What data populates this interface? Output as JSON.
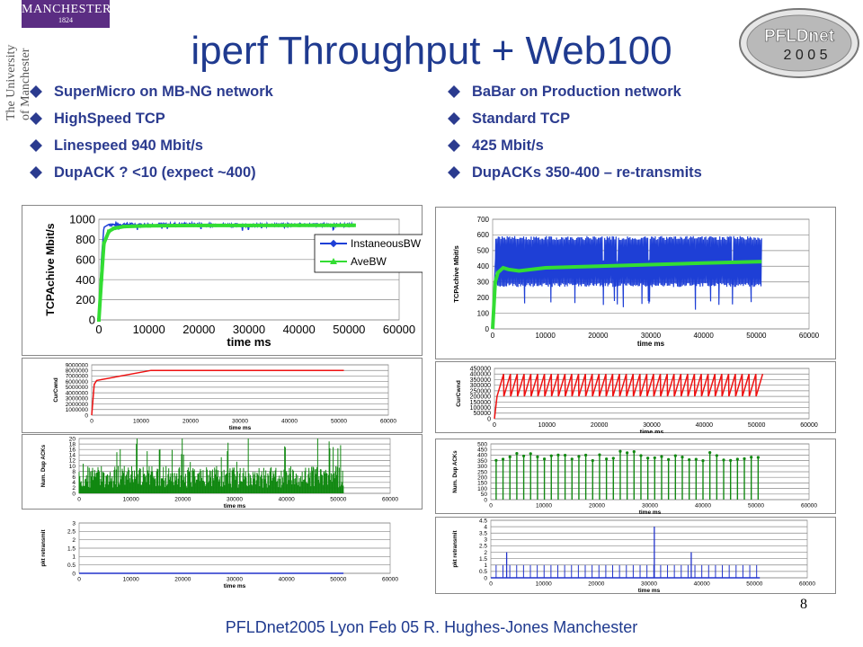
{
  "slide": {
    "title": "iperf Throughput + Web100",
    "page_number": "8",
    "footer": "PFLDnet2005 Lyon Feb 05 R. Hughes-Jones  Manchester"
  },
  "logos": {
    "manchester_word": "MANCHESTER",
    "manchester_year": "1824",
    "university_line1": "The University",
    "university_line2": "of Manchester",
    "pfldnet_text": "PFLDnet",
    "pfldnet_year": "2 0 0 5"
  },
  "bullets_left": [
    "SuperMicro on MB-NG network",
    "HighSpeed TCP",
    "Linespeed 940 Mbit/s",
    "DupACK ? <10 (expect ~400)"
  ],
  "bullets_right": [
    "BaBar on Production network",
    "Standard TCP",
    "425 Mbit/s",
    "DupACKs 350-400 – re-transmits"
  ],
  "colors": {
    "title_blue": "#1f3a8f",
    "bullet_blue": "#2b3b8f",
    "instantaneous": "#1e3fd6",
    "average": "#33dd33",
    "cwnd": "#ee1111",
    "dupack": "#118811",
    "retransmit": "#2233cc"
  },
  "chart_data": [
    {
      "id": "left_throughput",
      "type": "line",
      "xlabel": "time ms",
      "ylabel": "TCPAchive Mbit/s",
      "xlim": [
        0,
        60000
      ],
      "ylim": [
        0,
        1000
      ],
      "xticks": [
        "0",
        "10000",
        "20000",
        "30000",
        "40000",
        "50000",
        "60000"
      ],
      "yticks": [
        "0",
        "200",
        "400",
        "600",
        "800",
        "1000"
      ],
      "grid": true,
      "legend": "top-right",
      "series": [
        {
          "name": "InstaneousBW",
          "x": [
            0,
            500,
            1000,
            2000,
            3000,
            5000,
            10000,
            20000,
            30000,
            40000,
            50000,
            51000
          ],
          "y": [
            0,
            600,
            920,
            950,
            945,
            950,
            945,
            948,
            940,
            946,
            942,
            945
          ]
        },
        {
          "name": "AveBW",
          "x": [
            0,
            500,
            1000,
            2000,
            3000,
            5000,
            10000,
            20000,
            30000,
            40000,
            50000,
            51000
          ],
          "y": [
            0,
            400,
            760,
            880,
            910,
            928,
            935,
            938,
            938,
            940,
            940,
            940
          ]
        }
      ]
    },
    {
      "id": "left_cwnd",
      "type": "line",
      "xlabel": "time ms",
      "ylabel": "CurCwnd",
      "xlim": [
        0,
        60000
      ],
      "ylim": [
        0,
        9000000
      ],
      "xticks": [
        "0",
        "10000",
        "20000",
        "30000",
        "40000",
        "50000",
        "60000"
      ],
      "yticks": [
        "0",
        "1000000",
        "2000000",
        "3000000",
        "4000000",
        "5000000",
        "6000000",
        "7000000",
        "8000000",
        "9000000"
      ],
      "series": [
        {
          "x": [
            0,
            500,
            1000,
            12000,
            51000
          ],
          "y": [
            0,
            5500000,
            6200000,
            8000000,
            8000000
          ]
        }
      ]
    },
    {
      "id": "left_dupacks",
      "type": "bar",
      "xlabel": "time ms",
      "ylabel": "Num. Dup ACKs",
      "xlim": [
        0,
        60000
      ],
      "ylim": [
        0,
        20
      ],
      "xticks": [
        "0",
        "10000",
        "20000",
        "30000",
        "40000",
        "50000",
        "60000"
      ],
      "yticks": [
        "0",
        "2",
        "4",
        "6",
        "8",
        "10",
        "12",
        "14",
        "16",
        "18",
        "20"
      ],
      "series": [
        {
          "range": [
            0,
            51000
          ],
          "typical": [
            2,
            10
          ],
          "max": 20
        }
      ]
    },
    {
      "id": "left_retransmit",
      "type": "line",
      "xlabel": "time ms",
      "ylabel": "pkt retransmit",
      "xlim": [
        0,
        60000
      ],
      "ylim": [
        0,
        3
      ],
      "xticks": [
        "0",
        "10000",
        "20000",
        "30000",
        "40000",
        "50000",
        "60000"
      ],
      "yticks": [
        "0",
        "0.5",
        "1",
        "1.5",
        "2",
        "2.5",
        "3"
      ],
      "series": [
        {
          "x": [
            0,
            51000
          ],
          "y": [
            0,
            0
          ]
        }
      ]
    },
    {
      "id": "right_throughput",
      "type": "line",
      "xlabel": "time ms",
      "ylabel": "TCPAchive Mbit/s",
      "xlim": [
        0,
        60000
      ],
      "ylim": [
        0,
        700
      ],
      "xticks": [
        "0",
        "10000",
        "20000",
        "30000",
        "40000",
        "50000",
        "60000"
      ],
      "yticks": [
        "0",
        "100",
        "200",
        "300",
        "400",
        "500",
        "600",
        "700"
      ],
      "grid": true,
      "series": [
        {
          "name": "InstaneousBW",
          "range": [
            0,
            51000
          ],
          "band": [
            280,
            580
          ]
        },
        {
          "name": "AveBW",
          "x": [
            0,
            500,
            1000,
            2000,
            3000,
            5000,
            10000,
            20000,
            30000,
            40000,
            51000
          ],
          "y": [
            0,
            300,
            360,
            390,
            380,
            370,
            390,
            400,
            410,
            420,
            430
          ]
        }
      ]
    },
    {
      "id": "right_cwnd",
      "type": "line",
      "xlabel": "time ms",
      "ylabel": "CurCwnd",
      "xlim": [
        0,
        60000
      ],
      "ylim": [
        0,
        450000
      ],
      "xticks": [
        "0",
        "10000",
        "20000",
        "30000",
        "40000",
        "50000",
        "60000"
      ],
      "yticks": [
        "0",
        "50000",
        "100000",
        "150000",
        "200000",
        "250000",
        "300000",
        "350000",
        "400000",
        "450000"
      ],
      "series": [
        {
          "range": [
            0,
            51000
          ],
          "sawtooth": [
            200000,
            400000
          ]
        }
      ]
    },
    {
      "id": "right_dupacks",
      "type": "bar",
      "xlabel": "time ms",
      "ylabel": "Num. Dup ACKs",
      "xlim": [
        0,
        60000
      ],
      "ylim": [
        0,
        500
      ],
      "xticks": [
        "0",
        "10000",
        "20000",
        "30000",
        "40000",
        "50000",
        "60000"
      ],
      "yticks": [
        "0",
        "50",
        "100",
        "150",
        "200",
        "250",
        "300",
        "350",
        "400",
        "450",
        "500"
      ],
      "series": [
        {
          "range": [
            0,
            51000
          ],
          "typical": [
            350,
            400
          ]
        }
      ]
    },
    {
      "id": "right_retransmit",
      "type": "bar",
      "xlabel": "time ms",
      "ylabel": "pkt retransmit",
      "xlim": [
        0,
        60000
      ],
      "ylim": [
        0,
        4.5
      ],
      "xticks": [
        "0",
        "10000",
        "20000",
        "30000",
        "40000",
        "50000",
        "60000"
      ],
      "yticks": [
        "0",
        "0.5",
        "1",
        "1.5",
        "2",
        "2.5",
        "3",
        "3.5",
        "4",
        "4.5"
      ],
      "series": [
        {
          "x": [
            31000,
            38000,
            3000
          ],
          "y": [
            4,
            2,
            2
          ],
          "baseline": 1
        }
      ]
    }
  ]
}
